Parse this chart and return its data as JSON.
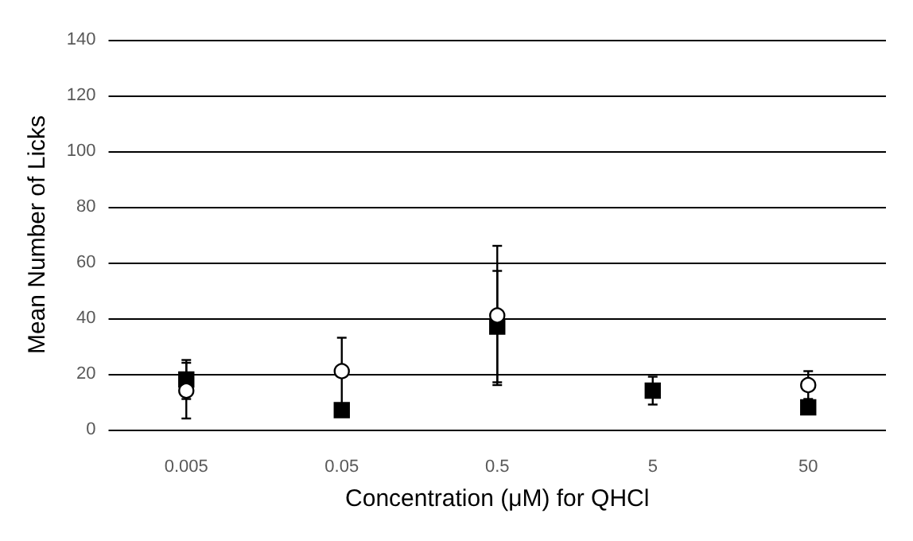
{
  "chart_data": {
    "type": "scatter",
    "xlabel": "Concentration (μM) for QHCl",
    "ylabel": "Mean Number of Licks",
    "categories": [
      "0.005",
      "0.05",
      "0.5",
      "5",
      "50"
    ],
    "ylim": [
      0,
      140
    ],
    "yticks": [
      0,
      20,
      40,
      60,
      80,
      100,
      120,
      140
    ],
    "grid": "y",
    "series": [
      {
        "color": "#000000",
        "marker": "square",
        "values": [
          18,
          7,
          37,
          14,
          8
        ],
        "errors": [
          7,
          null,
          20,
          5,
          null
        ]
      },
      {
        "color": "#ffffff",
        "marker": "circle",
        "values": [
          14,
          21,
          41,
          null,
          16
        ],
        "errors": [
          10,
          12,
          25,
          null,
          5
        ]
      }
    ]
  }
}
